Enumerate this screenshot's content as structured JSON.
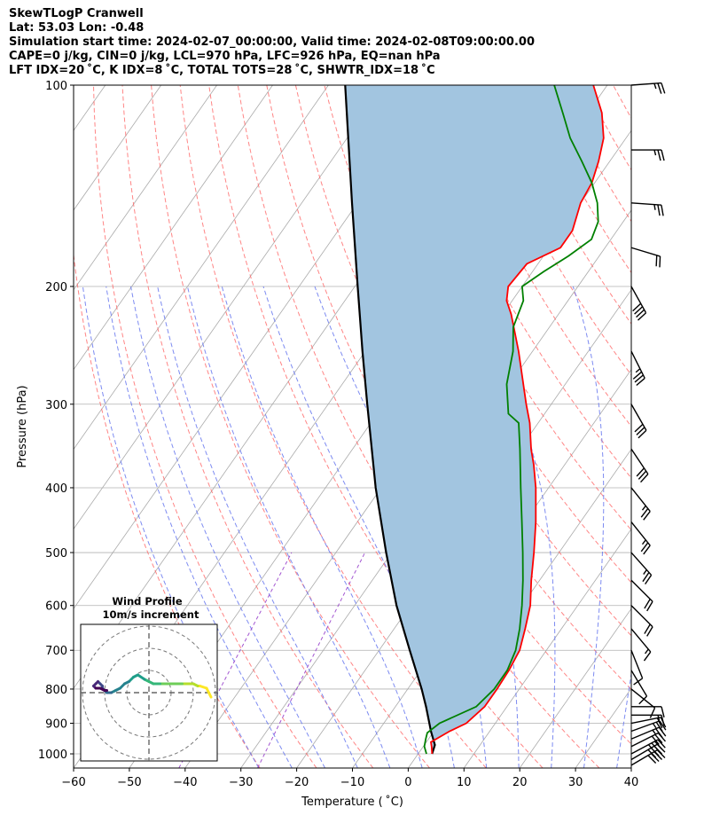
{
  "header": {
    "line1": "SkewTLogP Cranwell",
    "line2": "Lat: 53.03   Lon: -0.48",
    "line3": "Simulation start time: 2024-02-07_00:00:00, Valid time: 2024-02-08T09:00:00.00",
    "line4": "CAPE=0 j/kg, CIN=0 j/kg, LCL=970 hPa, LFC=926 hPa, EQ=nan hPa",
    "line5": "LFT IDX=20 ˚C, K IDX=8 ˚C, TOTAL TOTS=28 ˚C, SHWTR_IDX=18 ˚C"
  },
  "chart_data": {
    "type": "line",
    "subtype": "skew-T log-P diagram",
    "xlabel": "Temperature ( ˚C)",
    "ylabel": "Pressure (hPa)",
    "xlim": [
      -60,
      40
    ],
    "ylim": [
      1050,
      100
    ],
    "y_scale": "log",
    "x_ticks": [
      -60,
      -50,
      -40,
      -30,
      -20,
      -10,
      0,
      10,
      20,
      30,
      40
    ],
    "y_ticks": [
      1000,
      900,
      800,
      700,
      600,
      500,
      400,
      300,
      200,
      100
    ],
    "grid": true,
    "colors": {
      "temperature": "#ff0000",
      "dewpoint": "#008000",
      "parcel": "#000000",
      "cape_fill": "#a2c5e0",
      "dry_adiabats": "#ff6666",
      "moist_adiabats": "#6677ee",
      "isotherms": "#aaaaaa",
      "mixing_ratio": "#9944cc"
    },
    "series": [
      {
        "role": "temperature",
        "points": [
          [
            1000,
            2.5
          ],
          [
            975,
            1.5
          ],
          [
            960,
            0.8
          ],
          [
            925,
            2.8
          ],
          [
            900,
            4.8
          ],
          [
            850,
            6.0
          ],
          [
            800,
            6.0
          ],
          [
            750,
            5.8
          ],
          [
            700,
            5.2
          ],
          [
            650,
            3.5
          ],
          [
            600,
            1.5
          ],
          [
            550,
            -1.5
          ],
          [
            500,
            -4.5
          ],
          [
            450,
            -8.0
          ],
          [
            400,
            -12.3
          ],
          [
            370,
            -15.5
          ],
          [
            350,
            -18.0
          ],
          [
            320,
            -21.5
          ],
          [
            300,
            -24.5
          ],
          [
            250,
            -32.5
          ],
          [
            220,
            -38.5
          ],
          [
            210,
            -41.0
          ],
          [
            200,
            -42.5
          ],
          [
            185,
            -42.0
          ],
          [
            175,
            -38.0
          ],
          [
            165,
            -38.0
          ],
          [
            150,
            -40.0
          ],
          [
            140,
            -40.5
          ],
          [
            130,
            -42.0
          ],
          [
            120,
            -44.0
          ],
          [
            110,
            -47.5
          ],
          [
            100,
            -52.5
          ]
        ]
      },
      {
        "role": "dewpoint",
        "points": [
          [
            1000,
            1.5
          ],
          [
            975,
            0.2
          ],
          [
            950,
            -0.5
          ],
          [
            930,
            -1.0
          ],
          [
            900,
            0.0
          ],
          [
            850,
            4.5
          ],
          [
            800,
            5.5
          ],
          [
            750,
            5.5
          ],
          [
            700,
            4.5
          ],
          [
            650,
            2.5
          ],
          [
            600,
            0.0
          ],
          [
            550,
            -3.0
          ],
          [
            500,
            -6.5
          ],
          [
            450,
            -10.5
          ],
          [
            400,
            -15.0
          ],
          [
            350,
            -20.0
          ],
          [
            320,
            -23.5
          ],
          [
            310,
            -26.5
          ],
          [
            280,
            -30.5
          ],
          [
            250,
            -33.5
          ],
          [
            230,
            -36.5
          ],
          [
            210,
            -38.0
          ],
          [
            200,
            -40.0
          ],
          [
            190,
            -38.0
          ],
          [
            180,
            -35.5
          ],
          [
            170,
            -33.5
          ],
          [
            160,
            -34.5
          ],
          [
            150,
            -37.0
          ],
          [
            140,
            -40.5
          ],
          [
            130,
            -45.0
          ],
          [
            120,
            -50.0
          ],
          [
            110,
            -54.5
          ],
          [
            100,
            -59.5
          ]
        ]
      },
      {
        "role": "parcel",
        "points": [
          [
            1000,
            2.5
          ],
          [
            970,
            1.9
          ],
          [
            926,
            -0.5
          ],
          [
            850,
            -4.5
          ],
          [
            800,
            -7.5
          ],
          [
            700,
            -14.5
          ],
          [
            600,
            -22.5
          ],
          [
            500,
            -31.0
          ],
          [
            400,
            -41.0
          ],
          [
            300,
            -53.0
          ],
          [
            250,
            -60.5
          ],
          [
            200,
            -69.5
          ],
          [
            150,
            -81.0
          ],
          [
            100,
            -97.0
          ]
        ]
      }
    ],
    "wind_barbs": [
      {
        "p": 1040,
        "u": -17,
        "v": -10
      },
      {
        "p": 1020,
        "u": -17,
        "v": -10
      },
      {
        "p": 1000,
        "u": -15,
        "v": -8
      },
      {
        "p": 975,
        "u": -14,
        "v": -7
      },
      {
        "p": 950,
        "u": -12,
        "v": -5
      },
      {
        "p": 925,
        "u": -11,
        "v": -4
      },
      {
        "p": 900,
        "u": -10,
        "v": -2
      },
      {
        "p": 875,
        "u": -8,
        "v": 0
      },
      {
        "p": 850,
        "u": -5,
        "v": 0
      },
      {
        "p": 800,
        "u": -5,
        "v": 4
      },
      {
        "p": 750,
        "u": -3,
        "v": 5
      },
      {
        "p": 700,
        "u": -2,
        "v": 5
      },
      {
        "p": 650,
        "u": -5,
        "v": 6
      },
      {
        "p": 600,
        "u": -7,
        "v": 7
      },
      {
        "p": 550,
        "u": -8,
        "v": 8
      },
      {
        "p": 500,
        "u": -8,
        "v": 9
      },
      {
        "p": 450,
        "u": -8,
        "v": 10
      },
      {
        "p": 400,
        "u": -8,
        "v": 10
      },
      {
        "p": 350,
        "u": -8,
        "v": 12
      },
      {
        "p": 300,
        "u": -8,
        "v": 14
      },
      {
        "p": 250,
        "u": -8,
        "v": 16
      },
      {
        "p": 200,
        "u": -10,
        "v": 18
      },
      {
        "p": 175,
        "u": -10,
        "v": 3
      },
      {
        "p": 150,
        "u": -14,
        "v": 1
      },
      {
        "p": 125,
        "u": -14,
        "v": 0
      },
      {
        "p": 100,
        "u": -14,
        "v": -1
      }
    ],
    "inset": {
      "title": "Wind Profile",
      "subtitle": "10m/s increment",
      "ring_step_ms": 10,
      "colormap": "viridis",
      "hodograph_uv": [
        [
          28,
          -2
        ],
        [
          27,
          0
        ],
        [
          26,
          2
        ],
        [
          23,
          3
        ],
        [
          22,
          3
        ],
        [
          20,
          4
        ],
        [
          18,
          4
        ],
        [
          15,
          4
        ],
        [
          12,
          4
        ],
        [
          8,
          4
        ],
        [
          5,
          4
        ],
        [
          2,
          4
        ],
        [
          0,
          5
        ],
        [
          -2,
          6
        ],
        [
          -5,
          8
        ],
        [
          -7,
          7
        ],
        [
          -9,
          5
        ],
        [
          -11,
          4
        ],
        [
          -13,
          2
        ],
        [
          -15,
          1
        ],
        [
          -17,
          0
        ],
        [
          -19,
          0
        ],
        [
          -20,
          1
        ],
        [
          -21,
          2
        ],
        [
          -21,
          3
        ],
        [
          -22,
          4
        ],
        [
          -23,
          5
        ],
        [
          -24,
          4
        ],
        [
          -25,
          3
        ],
        [
          -24,
          2
        ],
        [
          -22,
          2
        ],
        [
          -20,
          1
        ],
        [
          -19,
          1
        ]
      ]
    }
  }
}
